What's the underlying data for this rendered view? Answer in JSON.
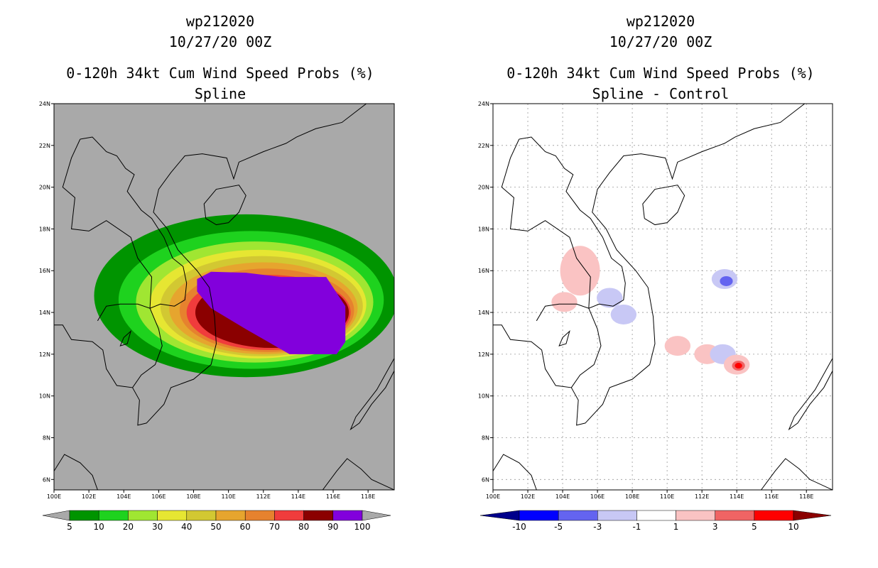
{
  "chart_data": [
    {
      "type": "heatmap",
      "storm_id": "wp212020",
      "date": "10/27/20 00Z",
      "title": "0-120h 34kt Cum Wind Speed Probs (%)",
      "subtitle": "Spline",
      "lon_range": [
        100,
        119.5
      ],
      "lat_range": [
        5.5,
        24
      ],
      "x_ticks": [
        "100E",
        "102E",
        "104E",
        "106E",
        "108E",
        "110E",
        "112E",
        "114E",
        "116E",
        "118E"
      ],
      "y_ticks": [
        "6N",
        "8N",
        "10N",
        "12N",
        "14N",
        "16N",
        "18N",
        "20N",
        "22N",
        "24N"
      ],
      "colorbar_labels": [
        "5",
        "10",
        "20",
        "30",
        "40",
        "50",
        "60",
        "70",
        "80",
        "90",
        "100"
      ],
      "colorbar_colors": [
        "#a9a9a9",
        "#009400",
        "#1ed21e",
        "#a0e632",
        "#e6e632",
        "#d2c832",
        "#e6a52e",
        "#e6822e",
        "#f03c3c",
        "#8b0000",
        "#8200dc",
        "#a9a9a9"
      ],
      "background_color": "#a9a9a9",
      "bands": [
        {
          "level": 5,
          "color": "#009400",
          "center": [
            111,
            14.8
          ],
          "rx": 8.7,
          "ry": 3.9
        },
        {
          "level": 10,
          "color": "#1ed21e",
          "center": [
            111.3,
            14.6
          ],
          "rx": 7.6,
          "ry": 3.3
        },
        {
          "level": 20,
          "color": "#a0e632",
          "center": [
            111.5,
            14.5
          ],
          "rx": 6.8,
          "ry": 2.9
        },
        {
          "level": 30,
          "color": "#e6e632",
          "center": [
            111.7,
            14.4
          ],
          "rx": 6.2,
          "ry": 2.6
        },
        {
          "level": 40,
          "color": "#d2c832",
          "center": [
            111.9,
            14.3
          ],
          "rx": 5.8,
          "ry": 2.4
        },
        {
          "level": 50,
          "color": "#e6a52e",
          "center": [
            112.0,
            14.2
          ],
          "rx": 5.4,
          "ry": 2.2
        },
        {
          "level": 60,
          "color": "#e6822e",
          "center": [
            112.2,
            14.1
          ],
          "rx": 5.0,
          "ry": 2.0
        },
        {
          "level": 70,
          "color": "#f03c3c",
          "center": [
            112.3,
            14.0
          ],
          "rx": 4.7,
          "ry": 1.8
        },
        {
          "level": 80,
          "color": "#8b0000",
          "center": [
            112.5,
            14.0
          ],
          "rx": 4.4,
          "ry": 1.7
        }
      ]
    },
    {
      "type": "heatmap",
      "storm_id": "wp212020",
      "date": "10/27/20 00Z",
      "title": "0-120h 34kt Cum Wind Speed Probs (%)",
      "subtitle": "Spline - Control",
      "lon_range": [
        100,
        119.5
      ],
      "lat_range": [
        5.5,
        24
      ],
      "x_ticks": [
        "100E",
        "102E",
        "104E",
        "106E",
        "108E",
        "110E",
        "112E",
        "114E",
        "116E",
        "118E"
      ],
      "y_ticks": [
        "6N",
        "8N",
        "10N",
        "12N",
        "14N",
        "16N",
        "18N",
        "20N",
        "22N",
        "24N"
      ],
      "colorbar_labels": [
        "-10",
        "-5",
        "-3",
        "-1",
        "1",
        "3",
        "5",
        "10"
      ],
      "colorbar_colors": [
        "#00008b",
        "#0000ff",
        "#6464f0",
        "#c8c8f5",
        "#ffffff",
        "#fac3c3",
        "#f06464",
        "#ff0000",
        "#8b0000"
      ],
      "background_color": "#ffffff",
      "difference_blobs": [
        {
          "lon": 105.0,
          "lat": 16.0,
          "value": 1.5,
          "color": "#fac3c3"
        },
        {
          "lon": 104.1,
          "lat": 14.5,
          "value": 1.2,
          "color": "#fac3c3"
        },
        {
          "lon": 107.5,
          "lat": 13.9,
          "value": -2,
          "color": "#c8c8f5"
        },
        {
          "lon": 106.7,
          "lat": 14.7,
          "value": -1.5,
          "color": "#c8c8f5"
        },
        {
          "lon": 113.3,
          "lat": 15.6,
          "value": -2,
          "color": "#c8c8f5"
        },
        {
          "lon": 113.4,
          "lat": 15.5,
          "value": -3.5,
          "color": "#6464f0"
        },
        {
          "lon": 110.6,
          "lat": 12.4,
          "value": 1.5,
          "color": "#fac3c3"
        },
        {
          "lon": 112.3,
          "lat": 12.0,
          "value": 1.5,
          "color": "#fac3c3"
        },
        {
          "lon": 113.2,
          "lat": 12.0,
          "value": -2,
          "color": "#c8c8f5"
        },
        {
          "lon": 114.0,
          "lat": 11.5,
          "value": 2,
          "color": "#fac3c3"
        },
        {
          "lon": 114.1,
          "lat": 11.45,
          "value": 4,
          "color": "#f06464"
        },
        {
          "lon": 114.1,
          "lat": 11.45,
          "value": 6,
          "color": "#ff0000"
        }
      ]
    }
  ]
}
